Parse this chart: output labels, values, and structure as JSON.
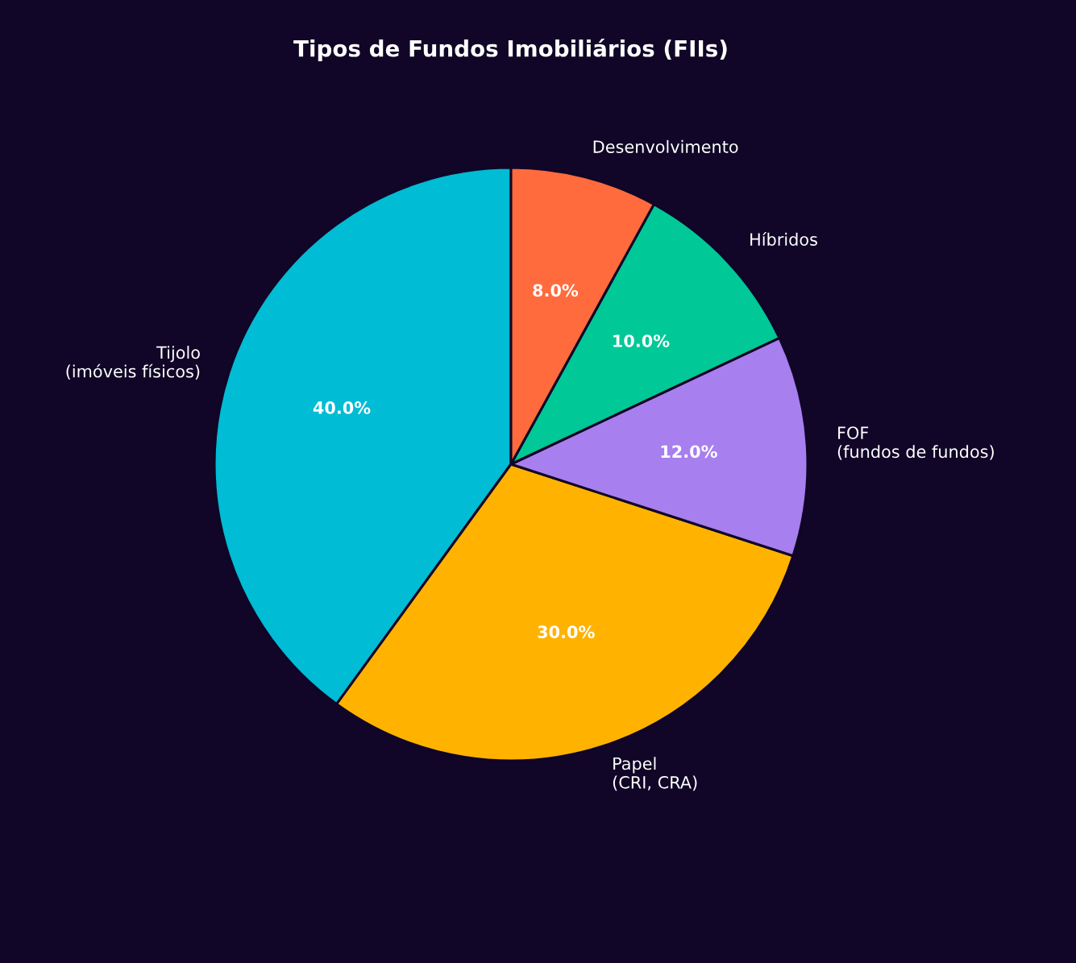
{
  "chart_data": {
    "type": "pie",
    "title": "Tipos de Fundos Imobiliários (FIIs)",
    "categories": [
      "Tijolo\n(imóveis físicos)",
      "Papel\n(CRI, CRA)",
      "FOF\n(fundos de fundos)",
      "Híbridos",
      "Desenvolvimento"
    ],
    "values": [
      40,
      30,
      12,
      10,
      8
    ],
    "colors": [
      "#00bcd4",
      "#ffb300",
      "#a77fef",
      "#00c896",
      "#ff6b3d"
    ],
    "value_labels": [
      "40.0%",
      "30.0%",
      "12.0%",
      "10.0%",
      "8.0%"
    ],
    "legend": false
  }
}
